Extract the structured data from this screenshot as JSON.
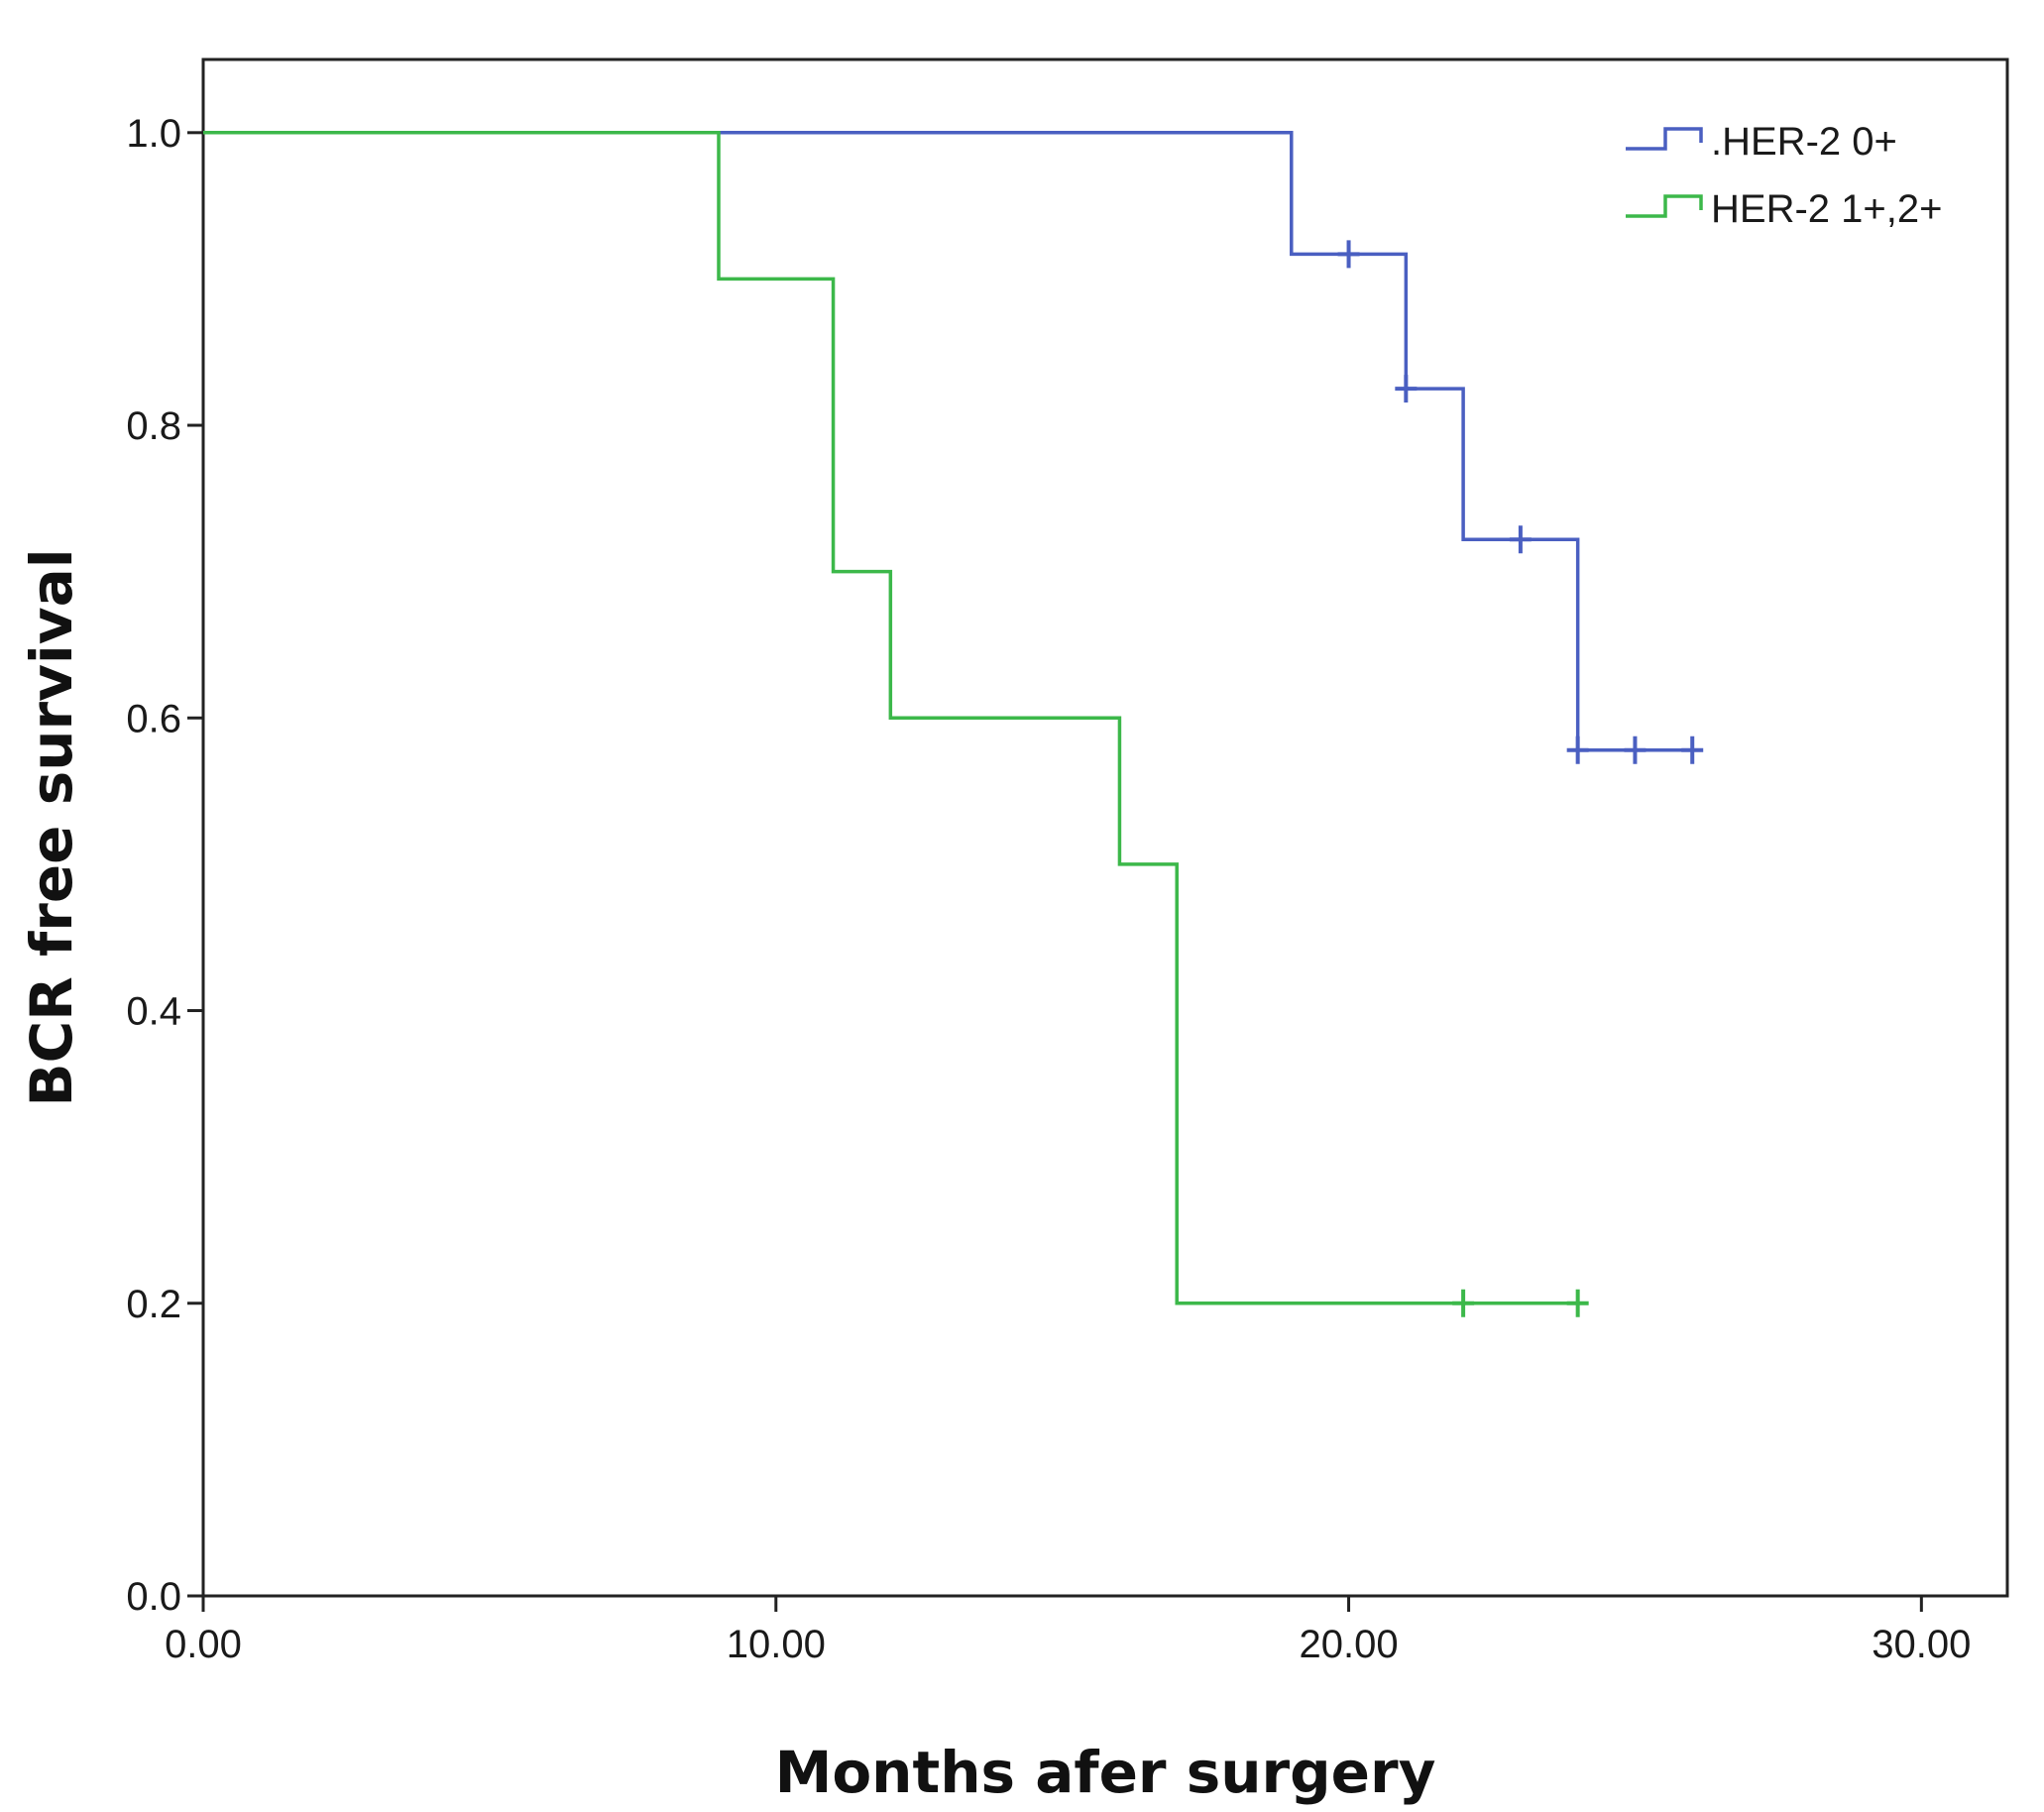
{
  "chart_data": {
    "type": "line",
    "subtype": "kaplan-meier-step",
    "title": "",
    "xlabel": "Months afer surgery",
    "ylabel": "BCR free survival",
    "xlim": [
      0,
      31.5
    ],
    "ylim": [
      0,
      1.05
    ],
    "x_ticks": [
      0,
      10,
      20,
      30
    ],
    "x_tick_labels": [
      "0.00",
      "10.00",
      "20.00",
      "30.00"
    ],
    "y_ticks": [
      0,
      0.2,
      0.4,
      0.6,
      0.8,
      1.0
    ],
    "y_tick_labels": [
      "0.0",
      "0.2",
      "0.4",
      "0.6",
      "0.8",
      "1.0"
    ],
    "grid": false,
    "legend_position": "top-right",
    "series": [
      {
        "name": ".HER-2 0+",
        "color": "#4a5fc1",
        "steps": [
          [
            0,
            1.0
          ],
          [
            19,
            0.917
          ],
          [
            21,
            0.825
          ],
          [
            22,
            0.722
          ],
          [
            24,
            0.578
          ]
        ],
        "end_x": 26,
        "censored": [
          [
            20,
            0.917
          ],
          [
            21,
            0.825
          ],
          [
            23,
            0.722
          ],
          [
            24,
            0.578
          ],
          [
            25,
            0.578
          ],
          [
            26,
            0.578
          ]
        ]
      },
      {
        "name": "HER-2 1+,2+",
        "color": "#3cb84a",
        "steps": [
          [
            0,
            1.0
          ],
          [
            9,
            0.9
          ],
          [
            11,
            0.7
          ],
          [
            12,
            0.6
          ],
          [
            16,
            0.5
          ],
          [
            17,
            0.2
          ]
        ],
        "end_x": 24,
        "censored": [
          [
            22,
            0.2
          ],
          [
            24,
            0.2
          ]
        ]
      }
    ]
  }
}
